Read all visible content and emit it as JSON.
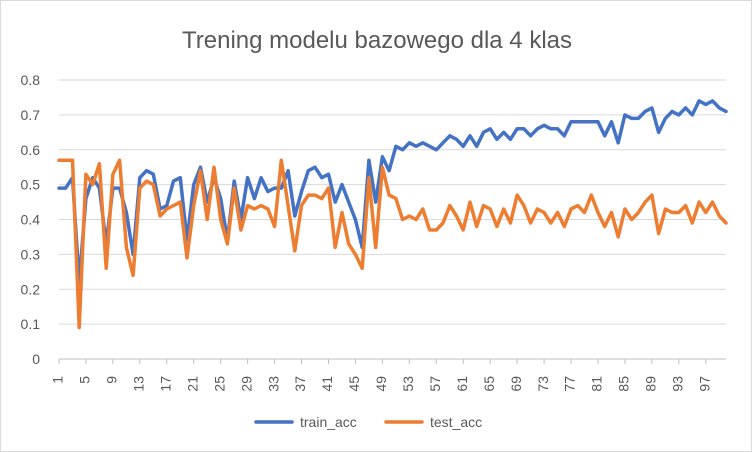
{
  "chart_data": {
    "type": "line",
    "title": "Trening modelu bazowego dla 4 klas",
    "xlabel": "",
    "ylabel": "",
    "ylim": [
      0,
      0.8
    ],
    "y_ticks": [
      "0",
      "0.1",
      "0.2",
      "0.3",
      "0.4",
      "0.5",
      "0.6",
      "0.7",
      "0.8"
    ],
    "x_tick_labels": [
      "1",
      "5",
      "9",
      "13",
      "17",
      "21",
      "25",
      "29",
      "33",
      "37",
      "41",
      "45",
      "49",
      "53",
      "57",
      "61",
      "65",
      "69",
      "73",
      "77",
      "81",
      "85",
      "89",
      "93",
      "97"
    ],
    "grid": true,
    "legend_position": "bottom",
    "x": [
      1,
      2,
      3,
      4,
      5,
      6,
      7,
      8,
      9,
      10,
      11,
      12,
      13,
      14,
      15,
      16,
      17,
      18,
      19,
      20,
      21,
      22,
      23,
      24,
      25,
      26,
      27,
      28,
      29,
      30,
      31,
      32,
      33,
      34,
      35,
      36,
      37,
      38,
      39,
      40,
      41,
      42,
      43,
      44,
      45,
      46,
      47,
      48,
      49,
      50,
      51,
      52,
      53,
      54,
      55,
      56,
      57,
      58,
      59,
      60,
      61,
      62,
      63,
      64,
      65,
      66,
      67,
      68,
      69,
      70,
      71,
      72,
      73,
      74,
      75,
      76,
      77,
      78,
      79,
      80,
      81,
      82,
      83,
      84,
      85,
      86,
      87,
      88,
      89,
      90,
      91,
      92,
      93,
      94,
      95,
      96,
      97,
      98,
      99,
      100
    ],
    "series": [
      {
        "name": "train_acc",
        "color": "#4472c4",
        "values": [
          0.49,
          0.49,
          0.52,
          0.22,
          0.46,
          0.52,
          0.49,
          0.33,
          0.49,
          0.49,
          0.42,
          0.3,
          0.52,
          0.54,
          0.53,
          0.43,
          0.44,
          0.51,
          0.52,
          0.34,
          0.5,
          0.55,
          0.45,
          0.52,
          0.46,
          0.34,
          0.51,
          0.4,
          0.52,
          0.46,
          0.52,
          0.48,
          0.49,
          0.49,
          0.54,
          0.41,
          0.48,
          0.54,
          0.55,
          0.52,
          0.53,
          0.45,
          0.5,
          0.45,
          0.4,
          0.32,
          0.57,
          0.45,
          0.58,
          0.54,
          0.61,
          0.6,
          0.62,
          0.61,
          0.62,
          0.61,
          0.6,
          0.62,
          0.64,
          0.63,
          0.61,
          0.64,
          0.61,
          0.65,
          0.66,
          0.63,
          0.65,
          0.63,
          0.66,
          0.66,
          0.64,
          0.66,
          0.67,
          0.66,
          0.66,
          0.64,
          0.68,
          0.68,
          0.68,
          0.68,
          0.68,
          0.64,
          0.68,
          0.62,
          0.7,
          0.69,
          0.69,
          0.71,
          0.72,
          0.65,
          0.69,
          0.71,
          0.7,
          0.72,
          0.7,
          0.74,
          0.73,
          0.74,
          0.72,
          0.71
        ]
      },
      {
        "name": "test_acc",
        "color": "#ed7d31",
        "values": [
          0.57,
          0.57,
          0.57,
          0.09,
          0.53,
          0.5,
          0.56,
          0.26,
          0.53,
          0.57,
          0.32,
          0.24,
          0.49,
          0.51,
          0.5,
          0.41,
          0.43,
          0.44,
          0.45,
          0.29,
          0.44,
          0.54,
          0.4,
          0.55,
          0.4,
          0.33,
          0.49,
          0.37,
          0.44,
          0.43,
          0.44,
          0.43,
          0.38,
          0.57,
          0.44,
          0.31,
          0.44,
          0.47,
          0.47,
          0.46,
          0.49,
          0.32,
          0.42,
          0.33,
          0.3,
          0.26,
          0.52,
          0.32,
          0.55,
          0.47,
          0.46,
          0.4,
          0.41,
          0.4,
          0.43,
          0.37,
          0.37,
          0.39,
          0.44,
          0.41,
          0.37,
          0.45,
          0.38,
          0.44,
          0.43,
          0.38,
          0.43,
          0.39,
          0.47,
          0.44,
          0.39,
          0.43,
          0.42,
          0.39,
          0.42,
          0.38,
          0.43,
          0.44,
          0.42,
          0.47,
          0.42,
          0.38,
          0.42,
          0.35,
          0.43,
          0.4,
          0.42,
          0.45,
          0.47,
          0.36,
          0.43,
          0.42,
          0.42,
          0.44,
          0.39,
          0.45,
          0.42,
          0.45,
          0.41,
          0.39
        ]
      }
    ]
  }
}
